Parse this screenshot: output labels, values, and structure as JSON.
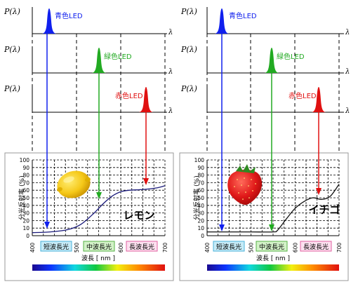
{
  "spectrum_axis": {
    "p_label": "P(λ)",
    "x_label": "λ"
  },
  "leds": [
    {
      "label": "青色LED",
      "color": "#1020ee"
    },
    {
      "label": "緑色LED",
      "color": "#22aa22"
    },
    {
      "label": "赤色LED",
      "color": "#e01010"
    }
  ],
  "reflectance_axis": {
    "ylabel": "分光反射率 (%)",
    "xlabel": "波長 [ nm ]",
    "yticks": [
      "0",
      "10",
      "20",
      "30",
      "40",
      "50",
      "60",
      "70",
      "80",
      "90",
      "100"
    ],
    "xticks": [
      "400",
      "500",
      "600",
      "700"
    ]
  },
  "bands": [
    {
      "label": "短波長光",
      "bg": "#c6ebf7",
      "border": "#4ab0d8"
    },
    {
      "label": "中波長光",
      "bg": "#d3f2c8",
      "border": "#55b045"
    },
    {
      "label": "長波長光",
      "bg": "#fde0ef",
      "border": "#e060a0"
    }
  ],
  "panels": [
    {
      "fruit": "レモン"
    },
    {
      "fruit": "イチゴ"
    }
  ],
  "chart_data": [
    {
      "type": "line",
      "title": "レモン",
      "xlabel": "波長 [ nm ]",
      "ylabel": "分光反射率 (%)",
      "xlim": [
        400,
        700
      ],
      "ylim": [
        0,
        100
      ],
      "series": [
        {
          "x": [
            400,
            440,
            480,
            510,
            540,
            560,
            580,
            600,
            620,
            650,
            680,
            700
          ],
          "y": [
            4,
            5,
            8,
            15,
            30,
            42,
            52,
            58,
            60,
            61,
            63,
            66
          ]
        }
      ]
    },
    {
      "type": "line",
      "title": "イチゴ",
      "xlabel": "波長 [ nm ]",
      "ylabel": "分光反射率 (%)",
      "xlim": [
        400,
        700
      ],
      "ylim": [
        0,
        100
      ],
      "series": [
        {
          "x": [
            400,
            450,
            500,
            550,
            560,
            580,
            600,
            620,
            640,
            660,
            680,
            700
          ],
          "y": [
            5,
            5,
            5,
            5,
            7,
            22,
            36,
            45,
            50,
            48,
            52,
            68
          ]
        }
      ]
    }
  ]
}
